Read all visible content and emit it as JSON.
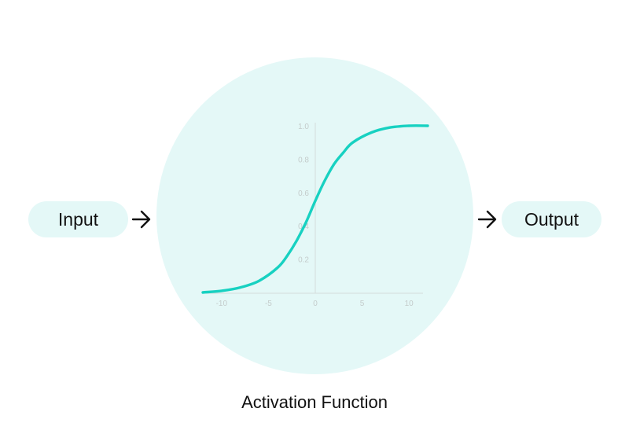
{
  "input_label": "Input",
  "output_label": "Output",
  "caption": "Activation Function",
  "icons": {
    "input_arrow": "arrow-right-icon",
    "output_arrow": "arrow-right-icon"
  },
  "colors": {
    "bubble": "#e4f8f7",
    "curve": "#17d1c1",
    "axis": "#d4dcdb",
    "text": "#111111"
  },
  "chart_data": {
    "type": "line",
    "title": "",
    "xlabel": "",
    "ylabel": "",
    "xlim": [
      -12,
      12
    ],
    "ylim": [
      0.0,
      1.0
    ],
    "x_ticks": [
      {
        "value": -10,
        "label": "-10"
      },
      {
        "value": -5,
        "label": "-5"
      },
      {
        "value": 0,
        "label": "0"
      },
      {
        "value": 5,
        "label": "5"
      },
      {
        "value": 10,
        "label": "10"
      }
    ],
    "y_ticks": [
      {
        "value": 0.2,
        "label": "0.2"
      },
      {
        "value": 0.4,
        "label": "0.4"
      },
      {
        "value": 0.6,
        "label": "0.6"
      },
      {
        "value": 0.8,
        "label": "0.8"
      },
      {
        "value": 1.0,
        "label": "1.0"
      }
    ],
    "series": [
      {
        "x": [
          -12,
          -10,
          -8,
          -6,
          -4,
          -3,
          -2,
          -1,
          0,
          1,
          2,
          3,
          4,
          6,
          8,
          10,
          12
        ],
        "y": [
          0.0,
          0.01,
          0.03,
          0.07,
          0.15,
          0.22,
          0.31,
          0.42,
          0.55,
          0.67,
          0.77,
          0.84,
          0.9,
          0.96,
          0.99,
          1.0,
          1.0
        ]
      }
    ],
    "grid": false,
    "legend": "none"
  }
}
